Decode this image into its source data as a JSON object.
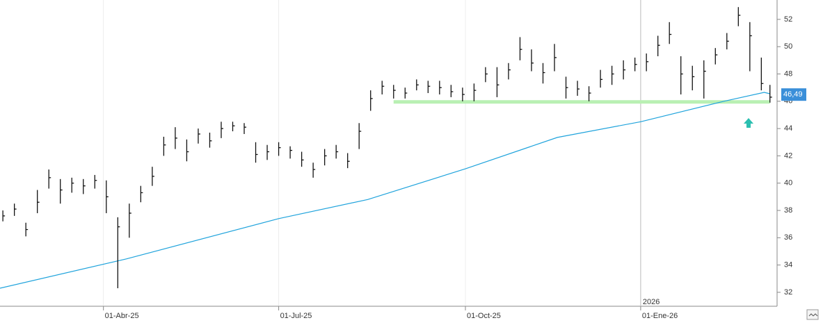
{
  "chart_data": {
    "type": "ohlc",
    "x": [
      1,
      5,
      9,
      13,
      17,
      21,
      25,
      29,
      33,
      37,
      41,
      45,
      49,
      53,
      57,
      61,
      65,
      69,
      73,
      77,
      81,
      85,
      89,
      93,
      97,
      101,
      105,
      109,
      113,
      117,
      121,
      125,
      129,
      133,
      137,
      141,
      145,
      149,
      153,
      157,
      161,
      165,
      169,
      173,
      177,
      181,
      185,
      189,
      193,
      197,
      201,
      205,
      209,
      213,
      217,
      221,
      225,
      229,
      233,
      237,
      241,
      245,
      249,
      253,
      257,
      261,
      265,
      268
    ],
    "high": [
      38,
      38.5,
      37.1,
      39.5,
      41,
      40.3,
      40.4,
      40.3,
      40.6,
      40.2,
      37.5,
      38.5,
      39.8,
      41.2,
      43.4,
      44.1,
      43.2,
      44,
      43.7,
      44.5,
      44.5,
      44.4,
      43,
      42.8,
      43,
      42.7,
      42.3,
      41.5,
      42.5,
      42.8,
      42.2,
      44.4,
      46.8,
      47.5,
      47.2,
      47,
      47.6,
      47.5,
      47.5,
      47.2,
      47,
      47.3,
      48.5,
      48.5,
      48.8,
      50.7,
      49.8,
      48.8,
      50.2,
      47.8,
      47.5,
      47.1,
      48.3,
      48.6,
      49,
      49.2,
      49.5,
      50.8,
      51.8,
      49.3,
      48.6,
      49,
      49.9,
      51,
      52.9,
      51.8,
      49.2,
      47.2
    ],
    "low": [
      37.2,
      37.6,
      36.1,
      37.8,
      39.6,
      38.5,
      39.3,
      39.2,
      39.6,
      37.8,
      32.3,
      36,
      38.6,
      39.8,
      42,
      42.5,
      41.6,
      42.9,
      42.6,
      43.3,
      43.8,
      43.6,
      41.5,
      41.7,
      42,
      41.8,
      41.2,
      40.4,
      41.3,
      41.8,
      41.1,
      42.5,
      45.3,
      46.5,
      46.2,
      46.2,
      46.8,
      46.6,
      46.5,
      46.3,
      46,
      46,
      47.4,
      46.3,
      47.6,
      49,
      48.2,
      47.3,
      48.2,
      46.2,
      46.4,
      46,
      47,
      47.2,
      47.6,
      48.2,
      48.2,
      49.3,
      50.2,
      46.5,
      46.8,
      46.2,
      48.7,
      49.8,
      51.5,
      48.2,
      46.8,
      45.9
    ],
    "close": [
      37.6,
      38.1,
      36.6,
      38.6,
      40.4,
      39.5,
      40,
      39.8,
      40.2,
      39,
      36.8,
      37.8,
      39.3,
      40.5,
      42.8,
      43.3,
      42.3,
      43.6,
      43.1,
      44,
      44.2,
      44.1,
      42.1,
      42.3,
      42.6,
      42.4,
      41.7,
      41,
      42,
      42.3,
      41.6,
      43.8,
      46.2,
      47.1,
      46.8,
      46.6,
      47.2,
      47.1,
      47,
      46.7,
      46.5,
      46.8,
      48,
      47.2,
      48.3,
      49.8,
      48.8,
      48.1,
      49.2,
      47,
      46.9,
      46.6,
      47.6,
      48,
      48.3,
      48.7,
      48.9,
      50.1,
      50.9,
      48,
      47.8,
      48.2,
      49.4,
      50.4,
      52.3,
      50.8,
      47.3,
      46.3
    ],
    "bar_color": "#111111",
    "ma": {
      "color": "#1fa3dc",
      "x": [
        0,
        44,
        97,
        128,
        162,
        194,
        223,
        252,
        266,
        268
      ],
      "values": [
        32.3,
        34.45,
        37.4,
        38.8,
        41.05,
        43.35,
        44.5,
        46.0,
        46.65,
        46.55
      ]
    },
    "support": {
      "value": 45.95,
      "x": [
        137,
        268
      ],
      "color": "#b9f0b3"
    },
    "last_price": {
      "value": 46.49,
      "label": "46,49",
      "color": "#3a8fd9"
    },
    "year_marker": {
      "value": 223,
      "label": "2026"
    },
    "xlim": [
      0,
      270
    ],
    "xticks": [
      {
        "value": 36,
        "label": "01-Abr-25"
      },
      {
        "value": 97,
        "label": "01-Jul-25"
      },
      {
        "value": 162,
        "label": "01-Oct-25"
      },
      {
        "value": 223,
        "label": "01-Ene-26"
      }
    ],
    "ylim": [
      31.03,
      53.42
    ],
    "yticks": [
      32,
      34,
      36,
      38,
      40,
      42,
      44,
      46,
      48,
      50,
      52
    ]
  }
}
